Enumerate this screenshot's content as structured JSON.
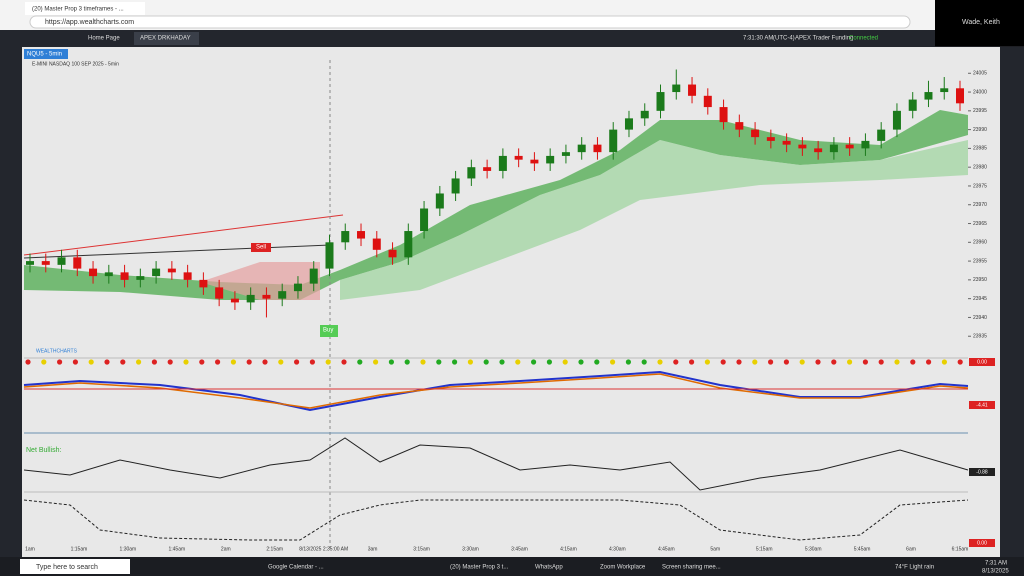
{
  "browser": {
    "tab_title": "(20) Master Prop 3 timeframes - ...",
    "url": "https://app.wealthcharts.com"
  },
  "app_bar": {
    "tabs": [
      "Home Page",
      "APEX DRKHADAY"
    ],
    "clock": "7:31:30 AM",
    "timezone": "(UTC-4)",
    "account": "APEX Trader Funding",
    "status": "Connected",
    "user": "Wade, Keith"
  },
  "chart": {
    "symbol": "NQU5 - 5min",
    "instrument": "E-MINI NASDAQ 100 SEP 2025 - 5min",
    "sell_label": "Sell",
    "buy_label": "Buy",
    "brand": "WEALTHCHARTS",
    "net_label": "Net Bullish:",
    "ylim": [
      23930,
      24008
    ],
    "yticks": [
      23935,
      23940,
      23945,
      23950,
      23955,
      23960,
      23965,
      23970,
      23975,
      23980,
      23985,
      23990,
      23995,
      24000,
      24005
    ],
    "candles": [
      [
        23954,
        23957,
        23952,
        23955
      ],
      [
        23955,
        23957,
        23952,
        23954
      ],
      [
        23954,
        23958,
        23952,
        23956
      ],
      [
        23956,
        23958,
        23951,
        23953
      ],
      [
        23953,
        23955,
        23949,
        23951
      ],
      [
        23951,
        23954,
        23949,
        23952
      ],
      [
        23952,
        23954,
        23948,
        23950
      ],
      [
        23950,
        23953,
        23948,
        23951
      ],
      [
        23951,
        23955,
        23949,
        23953
      ],
      [
        23953,
        23955,
        23950,
        23952
      ],
      [
        23952,
        23954,
        23948,
        23950
      ],
      [
        23950,
        23952,
        23946,
        23948
      ],
      [
        23948,
        23950,
        23943,
        23945
      ],
      [
        23945,
        23947,
        23942,
        23944
      ],
      [
        23944,
        23948,
        23942,
        23946
      ],
      [
        23946,
        23948,
        23940,
        23945
      ],
      [
        23945,
        23949,
        23943,
        23947
      ],
      [
        23947,
        23951,
        23945,
        23949
      ],
      [
        23949,
        23955,
        23947,
        23953
      ],
      [
        23953,
        23962,
        23951,
        23960
      ],
      [
        23960,
        23965,
        23958,
        23963
      ],
      [
        23963,
        23965,
        23959,
        23961
      ],
      [
        23961,
        23963,
        23956,
        23958
      ],
      [
        23958,
        23960,
        23954,
        23956
      ],
      [
        23956,
        23965,
        23954,
        23963
      ],
      [
        23963,
        23971,
        23961,
        23969
      ],
      [
        23969,
        23975,
        23967,
        23973
      ],
      [
        23973,
        23979,
        23971,
        23977
      ],
      [
        23977,
        23982,
        23975,
        23980
      ],
      [
        23980,
        23982,
        23977,
        23979
      ],
      [
        23979,
        23985,
        23977,
        23983
      ],
      [
        23983,
        23985,
        23980,
        23982
      ],
      [
        23982,
        23984,
        23979,
        23981
      ],
      [
        23981,
        23985,
        23979,
        23983
      ],
      [
        23983,
        23986,
        23981,
        23984
      ],
      [
        23984,
        23988,
        23982,
        23986
      ],
      [
        23986,
        23988,
        23982,
        23984
      ],
      [
        23984,
        23992,
        23982,
        23990
      ],
      [
        23990,
        23995,
        23988,
        23993
      ],
      [
        23993,
        23997,
        23991,
        23995
      ],
      [
        23995,
        24002,
        23993,
        24000
      ],
      [
        24000,
        24006,
        23998,
        24002
      ],
      [
        24002,
        24004,
        23997,
        23999
      ],
      [
        23999,
        24001,
        23994,
        23996
      ],
      [
        23996,
        23998,
        23990,
        23992
      ],
      [
        23992,
        23994,
        23988,
        23990
      ],
      [
        23990,
        23992,
        23986,
        23988
      ],
      [
        23988,
        23990,
        23985,
        23987
      ],
      [
        23987,
        23989,
        23984,
        23986
      ],
      [
        23986,
        23988,
        23983,
        23985
      ],
      [
        23985,
        23987,
        23982,
        23984
      ],
      [
        23984,
        23988,
        23982,
        23986
      ],
      [
        23986,
        23988,
        23983,
        23985
      ],
      [
        23985,
        23989,
        23983,
        23987
      ],
      [
        23987,
        23992,
        23985,
        23990
      ],
      [
        23990,
        23997,
        23988,
        23995
      ],
      [
        23995,
        24000,
        23993,
        23998
      ],
      [
        23998,
        24003,
        23996,
        24000
      ],
      [
        24000,
        24004,
        23998,
        24001
      ],
      [
        24001,
        24003,
        23995,
        23997
      ]
    ],
    "times": [
      "1am",
      "1:15am",
      "1:30am",
      "1:45am",
      "2am",
      "2:15am",
      "8/13/2025 2:35:00 AM",
      "3am",
      "3:15am",
      "3:30am",
      "3:45am",
      "4:15am",
      "4:30am",
      "4:45am",
      "5am",
      "5:15am",
      "5:30am",
      "5:45am",
      "6am",
      "6:15am"
    ],
    "panel_values": [
      "0.00",
      "-4.41",
      "-0.88",
      "0.00"
    ]
  },
  "taskbar": {
    "search": "Type here to search",
    "apps": [
      "Google Calendar - ...",
      "(20) Master Prop 3 t...",
      "WhatsApp",
      "Zoom Workplace",
      "Screen sharing mee..."
    ],
    "weather": "74°F Light rain",
    "time": "7:31 AM",
    "date": "8/13/2025"
  }
}
